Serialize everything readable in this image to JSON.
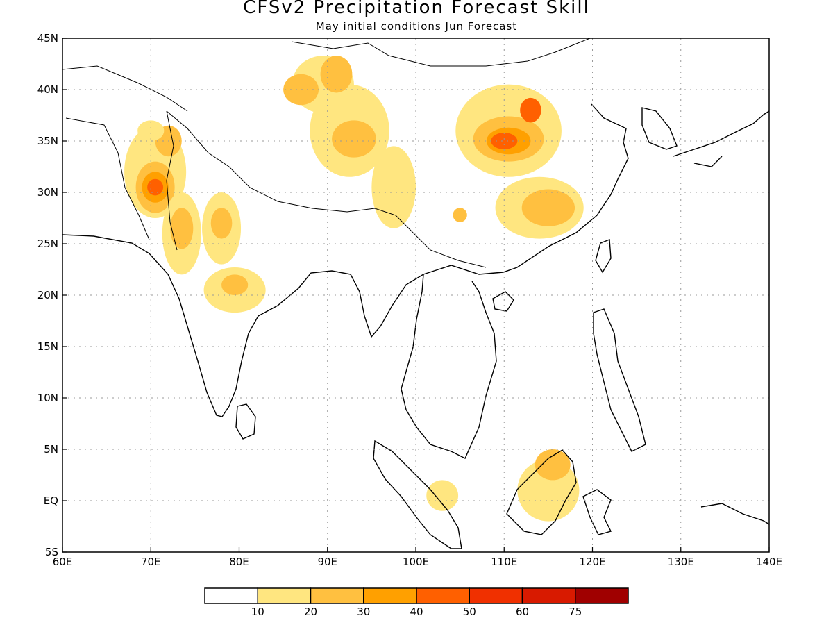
{
  "title": "CFSv2 Precipitation Forecast Skill",
  "subtitle": "May initial conditions  Jun Forecast",
  "map": {
    "lon_range": [
      60,
      140
    ],
    "lat_range": [
      -5,
      45
    ],
    "lon_ticks": [
      "60E",
      "70E",
      "80E",
      "90E",
      "100E",
      "110E",
      "120E",
      "130E",
      "140E"
    ],
    "lat_ticks": [
      "5S",
      "EQ",
      "5N",
      "10N",
      "15N",
      "20N",
      "25N",
      "30N",
      "35N",
      "40N",
      "45N"
    ],
    "grid": true
  },
  "colorbar": {
    "colors": [
      "#ffffff",
      "#ffe680",
      "#ffc040",
      "#ffa000",
      "#ff6000",
      "#f03000",
      "#d81a00",
      "#a00000"
    ],
    "labels": [
      "10",
      "20",
      "30",
      "40",
      "50",
      "60",
      "75"
    ]
  },
  "skill_regions": [
    {
      "lon": 89.5,
      "lat": 40.5,
      "rlon": 3.5,
      "rlat": 2.8,
      "level": 1
    },
    {
      "lon": 92.5,
      "lat": 36.0,
      "rlon": 4.5,
      "rlat": 4.5,
      "level": 1
    },
    {
      "lon": 87.0,
      "lat": 40.0,
      "rlon": 2.0,
      "rlat": 1.5,
      "level": 2
    },
    {
      "lon": 91.0,
      "lat": 41.5,
      "rlon": 1.8,
      "rlat": 1.8,
      "level": 2
    },
    {
      "lon": 93.0,
      "lat": 35.2,
      "rlon": 2.5,
      "rlat": 1.8,
      "level": 2
    },
    {
      "lon": 97.5,
      "lat": 30.5,
      "rlon": 2.5,
      "rlat": 4.0,
      "level": 1
    },
    {
      "lon": 110.5,
      "lat": 36.0,
      "rlon": 6.0,
      "rlat": 4.5,
      "level": 1
    },
    {
      "lon": 110.5,
      "lat": 35.2,
      "rlon": 4.0,
      "rlat": 2.2,
      "level": 2
    },
    {
      "lon": 110.5,
      "lat": 35.0,
      "rlon": 2.5,
      "rlat": 1.3,
      "level": 3
    },
    {
      "lon": 110.0,
      "lat": 35.0,
      "rlon": 1.5,
      "rlat": 0.8,
      "level": 4
    },
    {
      "lon": 113.0,
      "lat": 38.0,
      "rlon": 1.2,
      "rlat": 1.2,
      "level": 4
    },
    {
      "lon": 114.0,
      "lat": 28.5,
      "rlon": 5.0,
      "rlat": 3.0,
      "level": 1
    },
    {
      "lon": 115.0,
      "lat": 28.5,
      "rlon": 3.0,
      "rlat": 1.8,
      "level": 2
    },
    {
      "lon": 70.5,
      "lat": 32.0,
      "rlon": 3.5,
      "rlat": 4.5,
      "level": 1
    },
    {
      "lon": 70.5,
      "lat": 30.5,
      "rlon": 2.2,
      "rlat": 2.5,
      "level": 2
    },
    {
      "lon": 70.5,
      "lat": 30.5,
      "rlon": 1.5,
      "rlat": 1.5,
      "level": 3
    },
    {
      "lon": 70.5,
      "lat": 30.5,
      "rlon": 0.9,
      "rlat": 0.8,
      "level": 4
    },
    {
      "lon": 73.5,
      "lat": 26.0,
      "rlon": 2.2,
      "rlat": 4.0,
      "level": 1
    },
    {
      "lon": 73.5,
      "lat": 26.5,
      "rlon": 1.3,
      "rlat": 2.0,
      "level": 2
    },
    {
      "lon": 78.0,
      "lat": 26.5,
      "rlon": 2.2,
      "rlat": 3.5,
      "level": 1
    },
    {
      "lon": 78.0,
      "lat": 27.0,
      "rlon": 1.2,
      "rlat": 1.5,
      "level": 2
    },
    {
      "lon": 79.5,
      "lat": 20.5,
      "rlon": 3.5,
      "rlat": 2.2,
      "level": 1
    },
    {
      "lon": 79.5,
      "lat": 21.0,
      "rlon": 1.5,
      "rlat": 1.0,
      "level": 2
    },
    {
      "lon": 72.0,
      "lat": 35.0,
      "rlon": 1.5,
      "rlat": 1.5,
      "level": 2
    },
    {
      "lon": 70.0,
      "lat": 36.0,
      "rlon": 1.5,
      "rlat": 1.0,
      "level": 1
    },
    {
      "lon": 105.0,
      "lat": 27.8,
      "rlon": 0.8,
      "rlat": 0.7,
      "level": 2
    },
    {
      "lon": 115.0,
      "lat": 1.0,
      "rlon": 3.5,
      "rlat": 3.0,
      "level": 1
    },
    {
      "lon": 115.5,
      "lat": 3.5,
      "rlon": 2.0,
      "rlat": 1.5,
      "level": 2
    },
    {
      "lon": 103.0,
      "lat": 0.5,
      "rlon": 1.8,
      "rlat": 1.5,
      "level": 1
    }
  ]
}
